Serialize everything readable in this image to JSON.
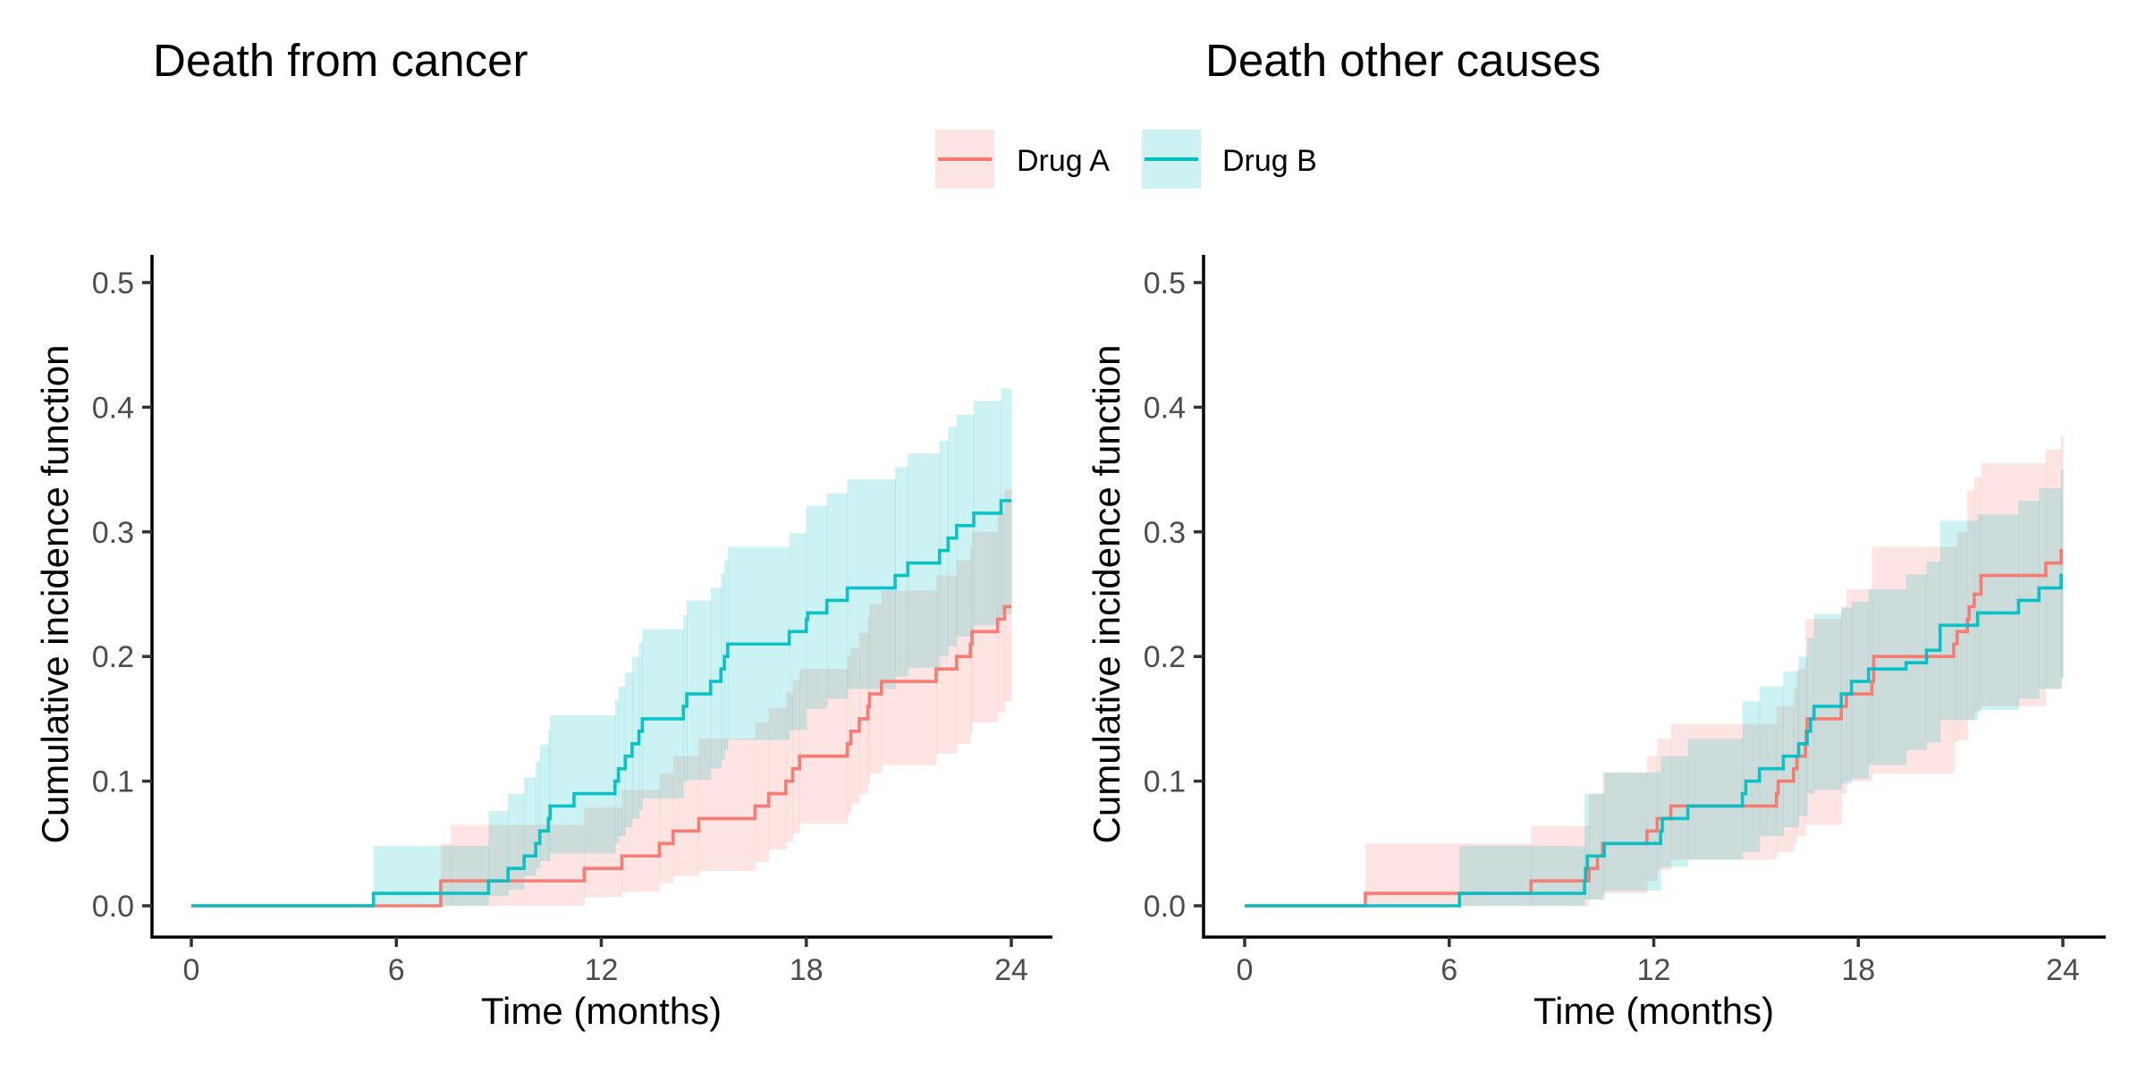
{
  "legend": {
    "position": "top-center",
    "items": [
      {
        "label": "Drug A",
        "color": "#F8766D"
      },
      {
        "label": "Drug B",
        "color": "#00BFC4"
      }
    ]
  },
  "chart_data": [
    {
      "type": "line",
      "subtype": "step-with-confidence-band",
      "title": "Death from cancer",
      "xlabel": "Time (months)",
      "ylabel": "Cumulative incidence function",
      "xlim": [
        0,
        24
      ],
      "ylim": [
        0,
        0.5
      ],
      "xticks": [
        "0",
        "6",
        "12",
        "18",
        "24"
      ],
      "xtick_values": [
        0,
        6,
        12,
        18,
        24
      ],
      "yticks": [
        "0.0",
        "0.1",
        "0.2",
        "0.3",
        "0.4",
        "0.5"
      ],
      "ytick_values": [
        0,
        0.1,
        0.2,
        0.3,
        0.4,
        0.5
      ],
      "grid": false,
      "series": [
        {
          "name": "Drug A",
          "color": "#F8766D",
          "steps": [
            [
              0,
              0
            ],
            [
              7.3,
              0.02
            ],
            [
              11.5,
              0.03
            ],
            [
              12.6,
              0.04
            ],
            [
              13.7,
              0.05
            ],
            [
              14.1,
              0.06
            ],
            [
              14.85,
              0.07
            ],
            [
              16.5,
              0.08
            ],
            [
              16.9,
              0.09
            ],
            [
              17.4,
              0.1
            ],
            [
              17.6,
              0.11
            ],
            [
              17.8,
              0.12
            ],
            [
              19.2,
              0.13
            ],
            [
              19.3,
              0.14
            ],
            [
              19.55,
              0.15
            ],
            [
              19.8,
              0.16
            ],
            [
              19.85,
              0.17
            ],
            [
              20.2,
              0.18
            ],
            [
              21.8,
              0.19
            ],
            [
              22.4,
              0.2
            ],
            [
              22.8,
              0.21
            ],
            [
              22.85,
              0.22
            ],
            [
              23.6,
              0.23
            ],
            [
              23.8,
              0.24
            ]
          ],
          "end": 24,
          "ci": [
            [
              7.3,
              0.0,
              0.05
            ],
            [
              7.6,
              0.0,
              0.065
            ],
            [
              11.5,
              0.007,
              0.079
            ],
            [
              12.6,
              0.011,
              0.093
            ],
            [
              13.7,
              0.018,
              0.106
            ],
            [
              14.1,
              0.024,
              0.12
            ],
            [
              14.85,
              0.028,
              0.134
            ],
            [
              16.5,
              0.035,
              0.147
            ],
            [
              16.9,
              0.045,
              0.159
            ],
            [
              17.4,
              0.051,
              0.171
            ],
            [
              17.6,
              0.058,
              0.181
            ],
            [
              17.8,
              0.066,
              0.19
            ],
            [
              19.2,
              0.074,
              0.2
            ],
            [
              19.3,
              0.082,
              0.207
            ],
            [
              19.55,
              0.09,
              0.219
            ],
            [
              19.8,
              0.098,
              0.231
            ],
            [
              19.85,
              0.106,
              0.242
            ],
            [
              20.2,
              0.113,
              0.253
            ],
            [
              21.8,
              0.122,
              0.265
            ],
            [
              22.4,
              0.13,
              0.277
            ],
            [
              22.8,
              0.138,
              0.288
            ],
            [
              22.85,
              0.147,
              0.3
            ],
            [
              23.6,
              0.155,
              0.315
            ],
            [
              23.8,
              0.164,
              0.334
            ]
          ]
        },
        {
          "name": "Drug B",
          "color": "#00BFC4",
          "steps": [
            [
              0,
              0
            ],
            [
              5.33,
              0.01
            ],
            [
              8.7,
              0.02
            ],
            [
              9.27,
              0.03
            ],
            [
              9.74,
              0.04
            ],
            [
              10.08,
              0.05
            ],
            [
              10.2,
              0.06
            ],
            [
              10.45,
              0.07
            ],
            [
              10.5,
              0.08
            ],
            [
              11.2,
              0.09
            ],
            [
              12.4,
              0.1
            ],
            [
              12.5,
              0.11
            ],
            [
              12.7,
              0.12
            ],
            [
              12.9,
              0.13
            ],
            [
              13.1,
              0.14
            ],
            [
              13.2,
              0.15
            ],
            [
              14.4,
              0.16
            ],
            [
              14.5,
              0.17
            ],
            [
              15.2,
              0.18
            ],
            [
              15.5,
              0.19
            ],
            [
              15.6,
              0.2
            ],
            [
              15.7,
              0.21
            ],
            [
              17.5,
              0.22
            ],
            [
              18.0,
              0.23
            ],
            [
              18.04,
              0.235
            ],
            [
              18.6,
              0.245
            ],
            [
              19.2,
              0.255
            ],
            [
              20.6,
              0.265
            ],
            [
              20.97,
              0.275
            ],
            [
              21.9,
              0.285
            ],
            [
              22.15,
              0.295
            ],
            [
              22.4,
              0.305
            ],
            [
              22.9,
              0.315
            ],
            [
              23.7,
              0.325
            ]
          ],
          "end": 24,
          "ci": [
            [
              5.33,
              0.0,
              0.048
            ],
            [
              8.7,
              0.008,
              0.076
            ],
            [
              9.27,
              0.013,
              0.09
            ],
            [
              9.74,
              0.024,
              0.103
            ],
            [
              10.08,
              0.03,
              0.116
            ],
            [
              10.2,
              0.036,
              0.129
            ],
            [
              10.45,
              0.036,
              0.141
            ],
            [
              10.5,
              0.042,
              0.153
            ],
            [
              12.4,
              0.05,
              0.165
            ],
            [
              12.5,
              0.056,
              0.176
            ],
            [
              12.7,
              0.063,
              0.187
            ],
            [
              12.9,
              0.07,
              0.2
            ],
            [
              13.1,
              0.077,
              0.211
            ],
            [
              13.2,
              0.086,
              0.222
            ],
            [
              14.4,
              0.1,
              0.233
            ],
            [
              14.5,
              0.101,
              0.245
            ],
            [
              15.2,
              0.11,
              0.255
            ],
            [
              15.5,
              0.117,
              0.267
            ],
            [
              15.6,
              0.125,
              0.277
            ],
            [
              15.7,
              0.133,
              0.288
            ],
            [
              17.5,
              0.141,
              0.299
            ],
            [
              18.0,
              0.158,
              0.321
            ],
            [
              18.6,
              0.166,
              0.331
            ],
            [
              19.2,
              0.174,
              0.342
            ],
            [
              20.6,
              0.184,
              0.352
            ],
            [
              20.97,
              0.191,
              0.363
            ],
            [
              21.9,
              0.2,
              0.373
            ],
            [
              22.15,
              0.208,
              0.384
            ],
            [
              22.4,
              0.216,
              0.394
            ],
            [
              22.9,
              0.225,
              0.405
            ],
            [
              23.7,
              0.234,
              0.415
            ]
          ]
        }
      ]
    },
    {
      "type": "line",
      "subtype": "step-with-confidence-band",
      "title": "Death other causes",
      "xlabel": "Time (months)",
      "ylabel": "Cumulative incidence function",
      "xlim": [
        0,
        24
      ],
      "ylim": [
        0,
        0.5
      ],
      "xticks": [
        "0",
        "6",
        "12",
        "18",
        "24"
      ],
      "xtick_values": [
        0,
        6,
        12,
        18,
        24
      ],
      "yticks": [
        "0.0",
        "0.1",
        "0.2",
        "0.3",
        "0.4",
        "0.5"
      ],
      "ytick_values": [
        0,
        0.1,
        0.2,
        0.3,
        0.4,
        0.5
      ],
      "grid": false,
      "series": [
        {
          "name": "Drug A",
          "color": "#F8766D",
          "steps": [
            [
              0,
              0
            ],
            [
              3.54,
              0.01
            ],
            [
              8.4,
              0.02
            ],
            [
              10.1,
              0.03
            ],
            [
              10.35,
              0.04
            ],
            [
              10.5,
              0.05
            ],
            [
              11.8,
              0.06
            ],
            [
              12.1,
              0.07
            ],
            [
              12.5,
              0.08
            ],
            [
              15.6,
              0.09
            ],
            [
              15.65,
              0.1
            ],
            [
              16.1,
              0.11
            ],
            [
              16.2,
              0.12
            ],
            [
              16.45,
              0.13
            ],
            [
              16.47,
              0.14
            ],
            [
              16.5,
              0.15
            ],
            [
              17.5,
              0.16
            ],
            [
              17.65,
              0.17
            ],
            [
              18.4,
              0.18
            ],
            [
              18.45,
              0.2
            ],
            [
              20.8,
              0.21
            ],
            [
              20.9,
              0.22
            ],
            [
              21.2,
              0.23
            ],
            [
              21.25,
              0.24
            ],
            [
              21.4,
              0.25
            ],
            [
              21.6,
              0.265
            ],
            [
              23.5,
              0.275
            ],
            [
              23.95,
              0.285
            ]
          ],
          "end": 24,
          "ci": [
            [
              3.54,
              0.0,
              0.05
            ],
            [
              8.4,
              0.0,
              0.064
            ],
            [
              10.1,
              0.005,
              0.09
            ],
            [
              10.5,
              0.01,
              0.107
            ],
            [
              11.8,
              0.02,
              0.12
            ],
            [
              12.1,
              0.029,
              0.134
            ],
            [
              12.5,
              0.037,
              0.146
            ],
            [
              15.6,
              0.043,
              0.16
            ],
            [
              16.1,
              0.05,
              0.175
            ],
            [
              16.2,
              0.056,
              0.19
            ],
            [
              16.45,
              0.065,
              0.23
            ],
            [
              17.5,
              0.09,
              0.24
            ],
            [
              17.65,
              0.1,
              0.254
            ],
            [
              18.4,
              0.106,
              0.288
            ],
            [
              20.8,
              0.131,
              0.288
            ],
            [
              20.9,
              0.133,
              0.3
            ],
            [
              21.2,
              0.149,
              0.333
            ],
            [
              21.4,
              0.155,
              0.344
            ],
            [
              21.6,
              0.16,
              0.355
            ],
            [
              23.5,
              0.174,
              0.366
            ],
            [
              23.95,
              0.183,
              0.377
            ]
          ]
        },
        {
          "name": "Drug B",
          "color": "#00BFC4",
          "steps": [
            [
              0,
              0
            ],
            [
              6.3,
              0.01
            ],
            [
              9.97,
              0.02
            ],
            [
              10.0,
              0.03
            ],
            [
              10.05,
              0.04
            ],
            [
              10.55,
              0.05
            ],
            [
              12.2,
              0.06
            ],
            [
              12.25,
              0.07
            ],
            [
              13.0,
              0.08
            ],
            [
              14.6,
              0.09
            ],
            [
              14.7,
              0.1
            ],
            [
              15.1,
              0.11
            ],
            [
              15.8,
              0.12
            ],
            [
              16.25,
              0.13
            ],
            [
              16.5,
              0.14
            ],
            [
              16.6,
              0.15
            ],
            [
              16.7,
              0.16
            ],
            [
              17.5,
              0.17
            ],
            [
              17.8,
              0.18
            ],
            [
              18.3,
              0.19
            ],
            [
              19.4,
              0.195
            ],
            [
              20.0,
              0.205
            ],
            [
              20.4,
              0.225
            ],
            [
              21.5,
              0.235
            ],
            [
              22.7,
              0.245
            ],
            [
              23.3,
              0.255
            ],
            [
              23.95,
              0.265
            ]
          ],
          "end": 24,
          "ci": [
            [
              6.3,
              0.0,
              0.048
            ],
            [
              9.97,
              0.005,
              0.09
            ],
            [
              10.55,
              0.012,
              0.107
            ],
            [
              12.2,
              0.031,
              0.12
            ],
            [
              13.0,
              0.037,
              0.134
            ],
            [
              14.6,
              0.043,
              0.164
            ],
            [
              15.1,
              0.056,
              0.176
            ],
            [
              15.8,
              0.063,
              0.188
            ],
            [
              16.25,
              0.072,
              0.2
            ],
            [
              16.5,
              0.09,
              0.215
            ],
            [
              16.7,
              0.093,
              0.234
            ],
            [
              17.5,
              0.098,
              0.239
            ],
            [
              17.8,
              0.102,
              0.244
            ],
            [
              18.3,
              0.113,
              0.254
            ],
            [
              19.4,
              0.125,
              0.266
            ],
            [
              20.0,
              0.131,
              0.276
            ],
            [
              20.4,
              0.149,
              0.309
            ],
            [
              21.5,
              0.157,
              0.314
            ],
            [
              22.7,
              0.166,
              0.325
            ],
            [
              23.3,
              0.174,
              0.335
            ],
            [
              23.95,
              0.183,
              0.35
            ]
          ]
        }
      ]
    }
  ]
}
